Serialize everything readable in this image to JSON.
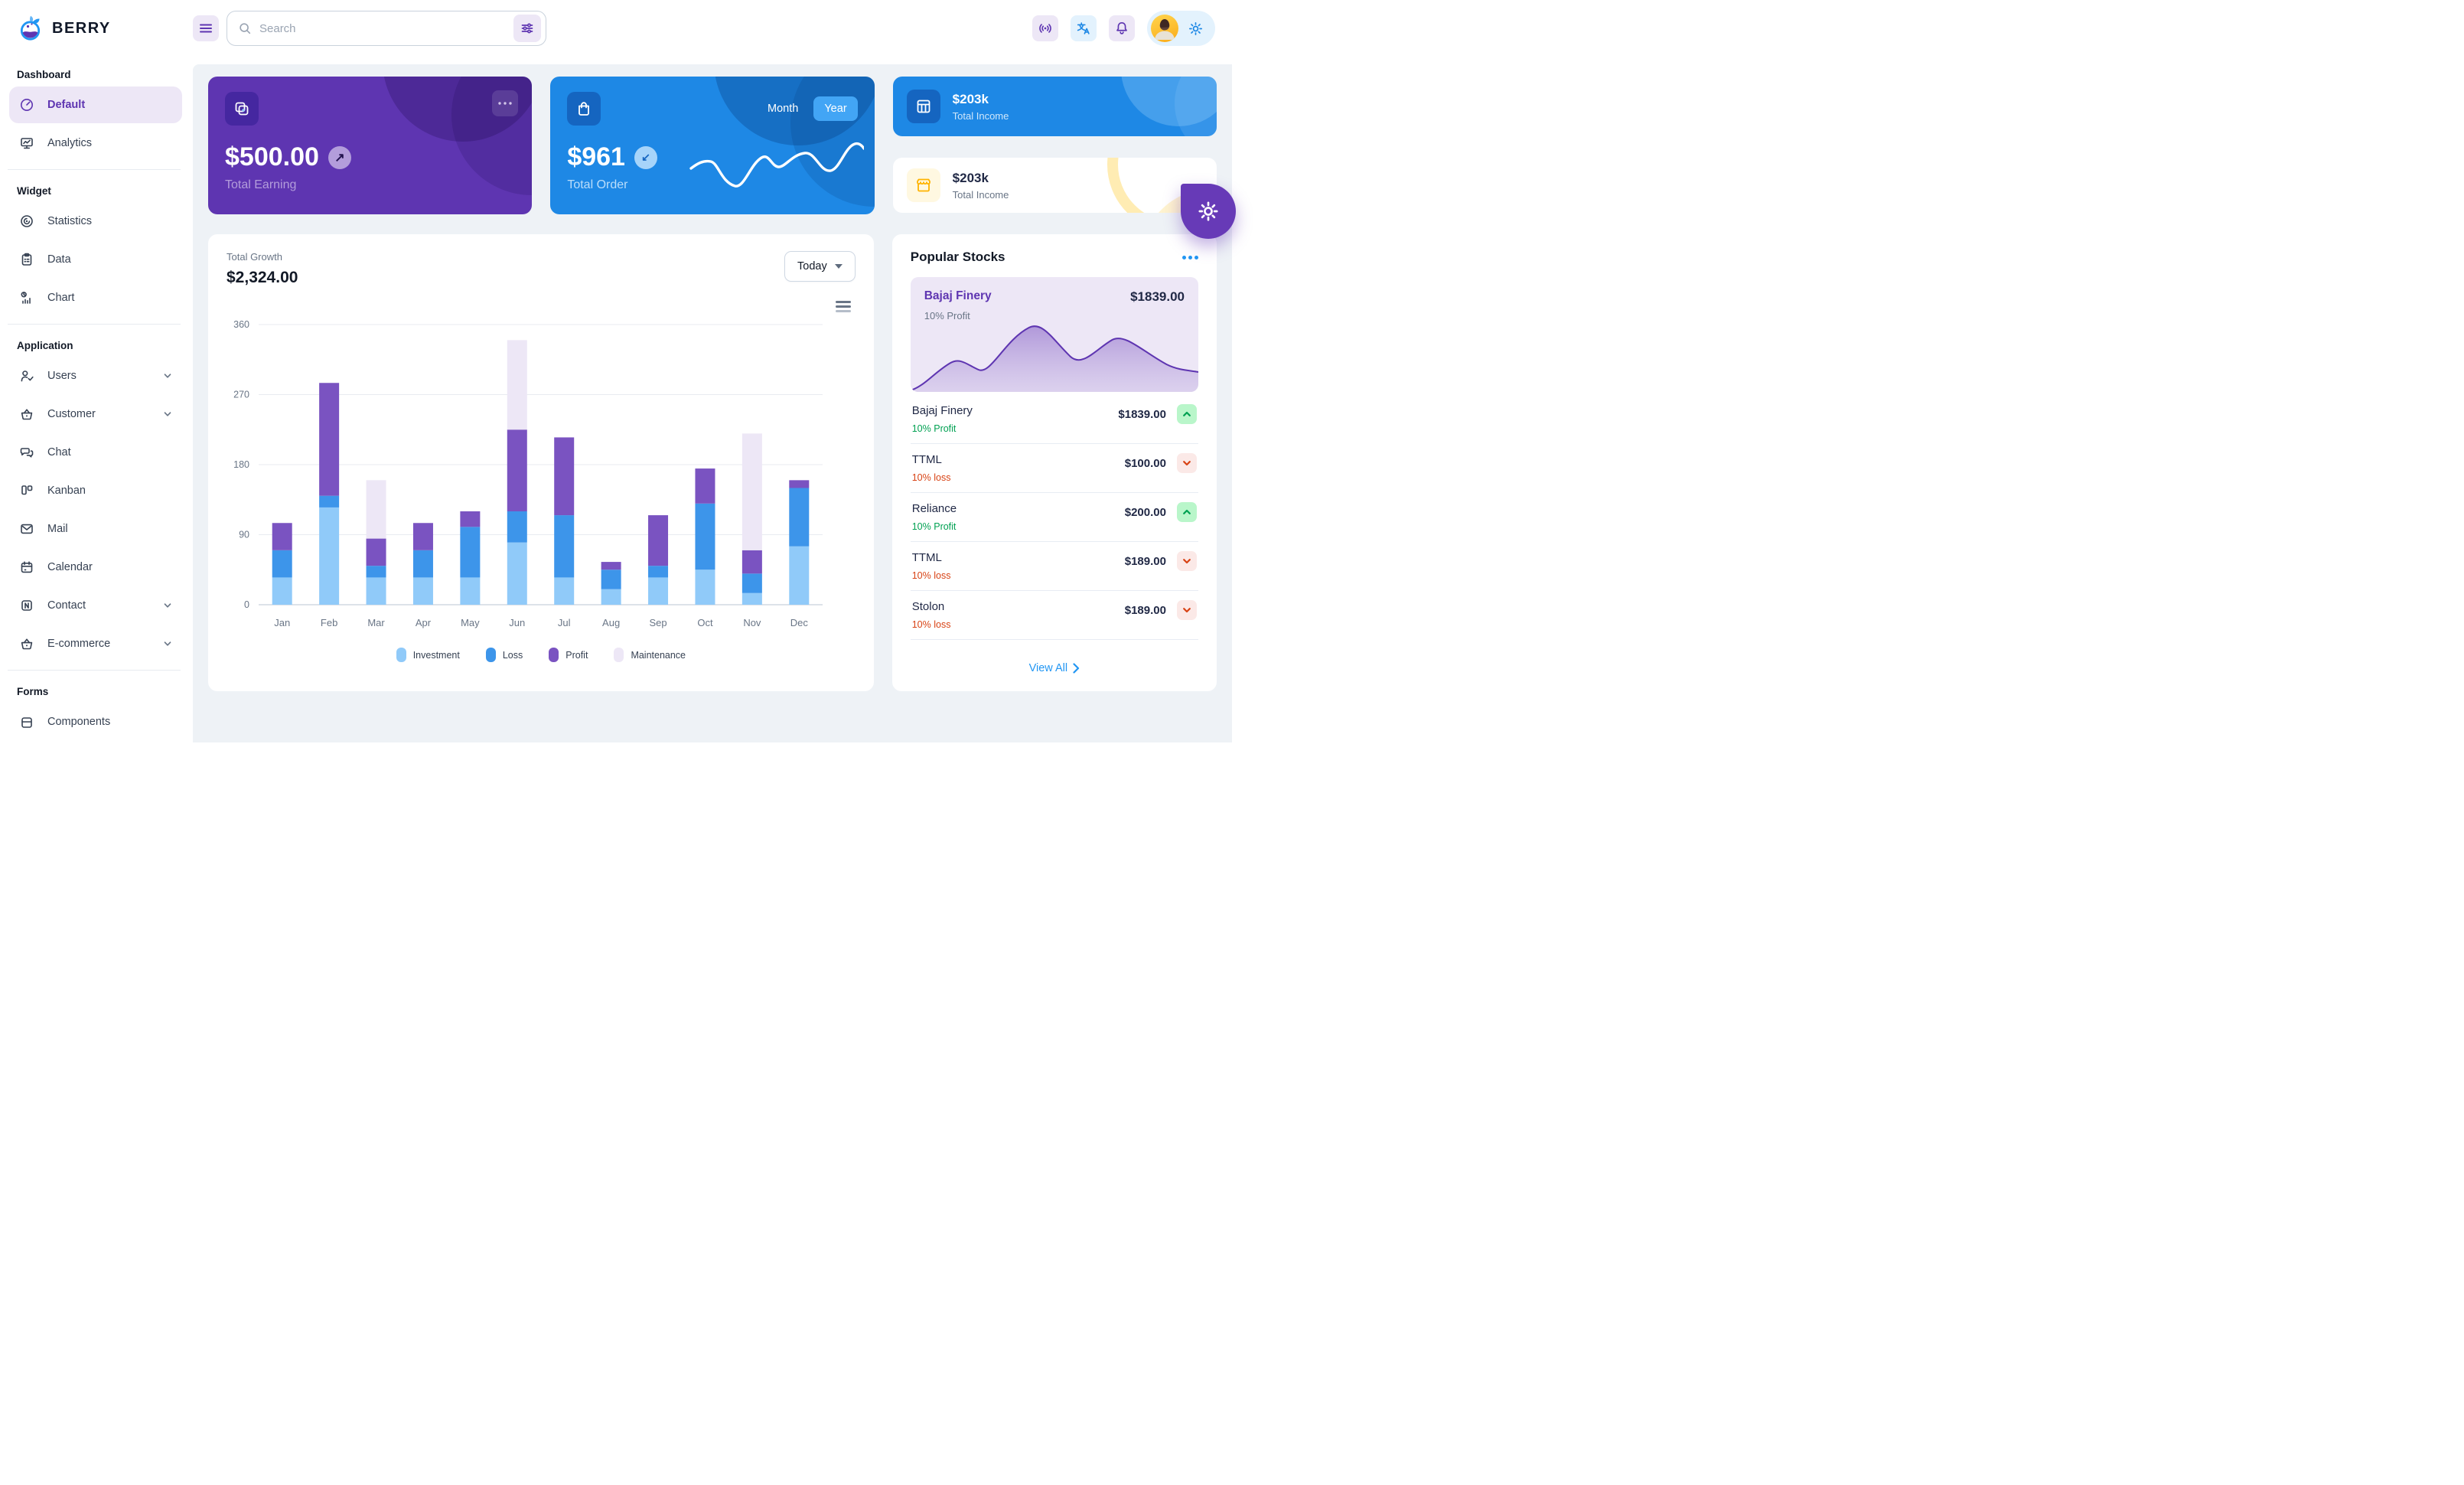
{
  "app": {
    "name": "BERRY"
  },
  "header": {
    "search": {
      "placeholder": "Search"
    },
    "icons": [
      "menu-icon",
      "search-icon",
      "adjustments-icon",
      "broadcast-icon",
      "translate-icon",
      "bell-icon",
      "gear-icon"
    ]
  },
  "sidebar": {
    "sections": [
      {
        "title": "Dashboard",
        "items": [
          {
            "label": "Default",
            "icon": "gauge",
            "active": true
          },
          {
            "label": "Analytics",
            "icon": "analytics"
          }
        ]
      },
      {
        "title": "Widget",
        "items": [
          {
            "label": "Statistics",
            "icon": "statistics"
          },
          {
            "label": "Data",
            "icon": "data"
          },
          {
            "label": "Chart",
            "icon": "chart"
          }
        ]
      },
      {
        "title": "Application",
        "items": [
          {
            "label": "Users",
            "icon": "users",
            "chevron": true
          },
          {
            "label": "Customer",
            "icon": "basket",
            "chevron": true
          },
          {
            "label": "Chat",
            "icon": "chat"
          },
          {
            "label": "Kanban",
            "icon": "kanban"
          },
          {
            "label": "Mail",
            "icon": "mail"
          },
          {
            "label": "Calendar",
            "icon": "calendar"
          },
          {
            "label": "Contact",
            "icon": "contact",
            "chevron": true
          },
          {
            "label": "E-commerce",
            "icon": "basket",
            "chevron": true
          }
        ]
      },
      {
        "title": "Forms",
        "items": [
          {
            "label": "Components",
            "icon": "components"
          }
        ]
      }
    ]
  },
  "cards": {
    "total_earning": {
      "amount": "$500.00",
      "label": "Total Earning",
      "badge_glyph": "↗"
    },
    "total_order": {
      "amount": "$961",
      "label": "Total Order",
      "badge_glyph": "↙",
      "toggle": {
        "options": [
          "Month",
          "Year"
        ],
        "selected": "Year"
      }
    },
    "total_income_blue": {
      "amount": "$203k",
      "label": "Total Income"
    },
    "total_income_light": {
      "amount": "$203k",
      "label": "Total Income"
    }
  },
  "growth": {
    "label": "Total Growth",
    "value": "$2,324.00",
    "period": "Today"
  },
  "chart_data": {
    "type": "bar",
    "stacked": true,
    "title": "Total Growth",
    "categories": [
      "Jan",
      "Feb",
      "Mar",
      "Apr",
      "May",
      "Jun",
      "Jul",
      "Aug",
      "Sep",
      "Oct",
      "Nov",
      "Dec"
    ],
    "series": [
      {
        "name": "Investment",
        "color": "#90caf9",
        "values": [
          35,
          125,
          35,
          35,
          35,
          80,
          35,
          20,
          35,
          45,
          15,
          75
        ]
      },
      {
        "name": "Loss",
        "color": "#3d95ea",
        "values": [
          35,
          15,
          15,
          35,
          65,
          40,
          80,
          25,
          15,
          85,
          25,
          75
        ]
      },
      {
        "name": "Profit",
        "color": "#7a53c1",
        "values": [
          35,
          145,
          35,
          35,
          20,
          105,
          100,
          10,
          65,
          45,
          30,
          10
        ]
      },
      {
        "name": "Maintenance",
        "color": "#ede7f6",
        "values": [
          0,
          0,
          75,
          0,
          0,
          115,
          0,
          0,
          0,
          0,
          150,
          0
        ]
      }
    ],
    "ylim": [
      0,
      360
    ],
    "yticks": [
      0,
      90,
      180,
      270,
      360
    ],
    "grid": "horizontal",
    "legend_position": "bottom"
  },
  "stocks": {
    "title": "Popular Stocks",
    "featured": {
      "name": "Bajaj Finery",
      "price": "$1839.00",
      "change": "10% Profit"
    },
    "items": [
      {
        "name": "Bajaj Finery",
        "price": "$1839.00",
        "change": "10% Profit",
        "trend": "up"
      },
      {
        "name": "TTML",
        "price": "$100.00",
        "change": "10% loss",
        "trend": "down"
      },
      {
        "name": "Reliance",
        "price": "$200.00",
        "change": "10% Profit",
        "trend": "up"
      },
      {
        "name": "TTML",
        "price": "$189.00",
        "change": "10% loss",
        "trend": "down"
      },
      {
        "name": "Stolon",
        "price": "$189.00",
        "change": "10% loss",
        "trend": "down"
      }
    ],
    "view_all": "View All"
  },
  "colors": {
    "primary_blue": "#2196f3",
    "primary_blue_dark": "#1e88e5",
    "secondary_purple": "#673ab7",
    "secondary_purple_dark": "#5e35b1",
    "success_green": "#00a152",
    "danger_orange": "#d84315",
    "warning_yellow": "#ffb300",
    "page_background": "#eef2f6"
  }
}
